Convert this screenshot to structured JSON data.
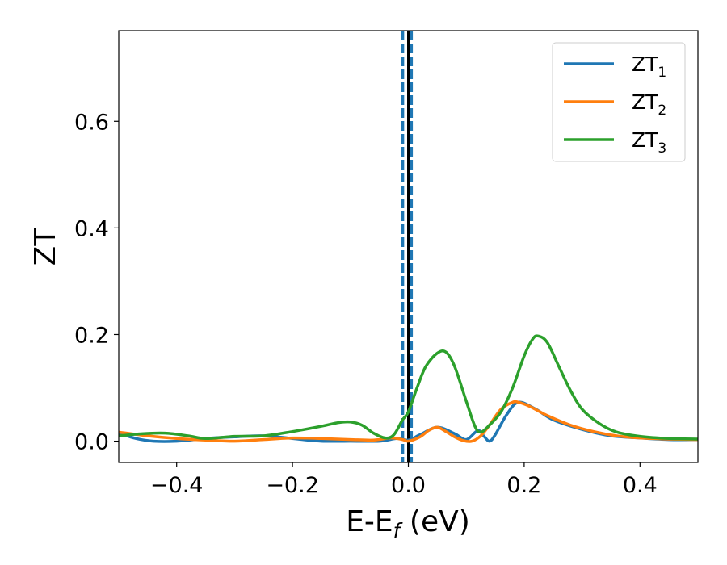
{
  "chart_data": {
    "type": "line",
    "xlabel": "E-E",
    "xlabel_sub": "f",
    "xlabel_unit": " (eV)",
    "ylabel": "ZT",
    "xlim": [
      -0.5,
      0.5
    ],
    "ylim": [
      -0.04,
      0.77
    ],
    "x_ticks": [
      -0.4,
      -0.2,
      0.0,
      0.2,
      0.4
    ],
    "x_tick_labels": [
      "−0.4",
      "−0.2",
      "0.0",
      "0.2",
      "0.4"
    ],
    "y_ticks": [
      0.0,
      0.2,
      0.4,
      0.6
    ],
    "y_tick_labels": [
      "0.0",
      "0.2",
      "0.4",
      "0.6"
    ],
    "grid": false,
    "legend_position": "top-right",
    "vertical_lines": [
      {
        "x": -0.01,
        "style": "dashed",
        "color": "#1f77b4"
      },
      {
        "x": 0.005,
        "style": "dashed",
        "color": "#1f77b4"
      },
      {
        "x": 0.0,
        "style": "solid",
        "color": "#000000"
      }
    ],
    "series": [
      {
        "name": "ZT",
        "name_sub": "1",
        "color": "#1f77b4",
        "x": [
          -0.5,
          -0.47,
          -0.44,
          -0.4,
          -0.35,
          -0.3,
          -0.25,
          -0.2,
          -0.15,
          -0.1,
          -0.05,
          -0.02,
          0.0,
          0.02,
          0.05,
          0.08,
          0.1,
          0.12,
          0.13,
          0.14,
          0.15,
          0.17,
          0.19,
          0.22,
          0.25,
          0.3,
          0.35,
          0.4,
          0.45,
          0.5
        ],
        "y": [
          0.015,
          0.005,
          0.0,
          0.0,
          0.005,
          0.008,
          0.01,
          0.005,
          0.0,
          0.0,
          0.0,
          0.005,
          0.002,
          0.012,
          0.026,
          0.014,
          0.003,
          0.02,
          0.01,
          0.0,
          0.012,
          0.05,
          0.073,
          0.06,
          0.04,
          0.022,
          0.01,
          0.006,
          0.003,
          0.003
        ]
      },
      {
        "name": "ZT",
        "name_sub": "2",
        "color": "#ff7f0e",
        "x": [
          -0.5,
          -0.45,
          -0.4,
          -0.35,
          -0.3,
          -0.25,
          -0.2,
          -0.15,
          -0.1,
          -0.06,
          -0.03,
          -0.01,
          0.0,
          0.02,
          0.035,
          0.05,
          0.065,
          0.08,
          0.095,
          0.11,
          0.125,
          0.14,
          0.16,
          0.18,
          0.19,
          0.21,
          0.24,
          0.28,
          0.32,
          0.36,
          0.4,
          0.45,
          0.5
        ],
        "y": [
          0.017,
          0.01,
          0.005,
          0.002,
          0.0,
          0.003,
          0.006,
          0.005,
          0.003,
          0.002,
          0.006,
          0.003,
          0.0,
          0.008,
          0.02,
          0.026,
          0.018,
          0.008,
          0.001,
          0.0,
          0.01,
          0.03,
          0.06,
          0.073,
          0.073,
          0.065,
          0.048,
          0.03,
          0.018,
          0.01,
          0.006,
          0.004,
          0.003
        ]
      },
      {
        "name": "ZT",
        "name_sub": "3",
        "color": "#2ca02c",
        "x": [
          -0.5,
          -0.46,
          -0.42,
          -0.38,
          -0.35,
          -0.3,
          -0.25,
          -0.2,
          -0.15,
          -0.12,
          -0.1,
          -0.08,
          -0.06,
          -0.04,
          -0.025,
          -0.01,
          0.0,
          0.015,
          0.03,
          0.05,
          0.065,
          0.08,
          0.1,
          0.115,
          0.125,
          0.14,
          0.16,
          0.18,
          0.2,
          0.215,
          0.225,
          0.24,
          0.26,
          0.28,
          0.3,
          0.33,
          0.36,
          0.4,
          0.45,
          0.5
        ],
        "y": [
          0.01,
          0.014,
          0.015,
          0.01,
          0.005,
          0.009,
          0.01,
          0.018,
          0.028,
          0.035,
          0.036,
          0.03,
          0.015,
          0.006,
          0.012,
          0.04,
          0.055,
          0.1,
          0.14,
          0.165,
          0.167,
          0.14,
          0.075,
          0.028,
          0.017,
          0.03,
          0.055,
          0.1,
          0.16,
          0.192,
          0.197,
          0.185,
          0.14,
          0.095,
          0.06,
          0.033,
          0.017,
          0.009,
          0.005,
          0.004
        ]
      }
    ]
  }
}
